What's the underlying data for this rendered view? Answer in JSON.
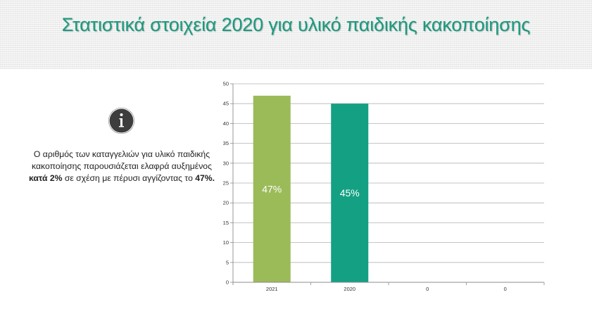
{
  "header": {
    "title": "Στατιστικά στοιχεία 2020 για υλικό παιδικής κακοποίησης"
  },
  "info": {
    "icon": "info-icon",
    "text_before": "Ο αριθμός των καταγγελιών για υλικό παιδικής κακοποίησης παρουσιάζεται ελαφρά αυξημένος ",
    "text_bold1": "κατά 2%",
    "text_middle": " σε σχέση με πέρυσι αγγίζοντας το ",
    "text_bold2": "47%."
  },
  "colors": {
    "title": "#1a9a80",
    "bar_2021": "#9bbb59",
    "bar_2020": "#14a083",
    "icon_bg": "#3d3d3d"
  },
  "chart_data": {
    "type": "bar",
    "categories": [
      "2021",
      "2020",
      "0",
      "0"
    ],
    "values": [
      47,
      45,
      0,
      0
    ],
    "data_labels": [
      "47%",
      "45%",
      "",
      ""
    ],
    "bar_colors": [
      "#9bbb59",
      "#14a083",
      "#9bbb59",
      "#14a083"
    ],
    "ylim": [
      0,
      50
    ],
    "yticks": [
      0,
      5,
      10,
      15,
      20,
      25,
      30,
      35,
      40,
      45,
      50
    ],
    "grid": true,
    "legend": "none"
  }
}
